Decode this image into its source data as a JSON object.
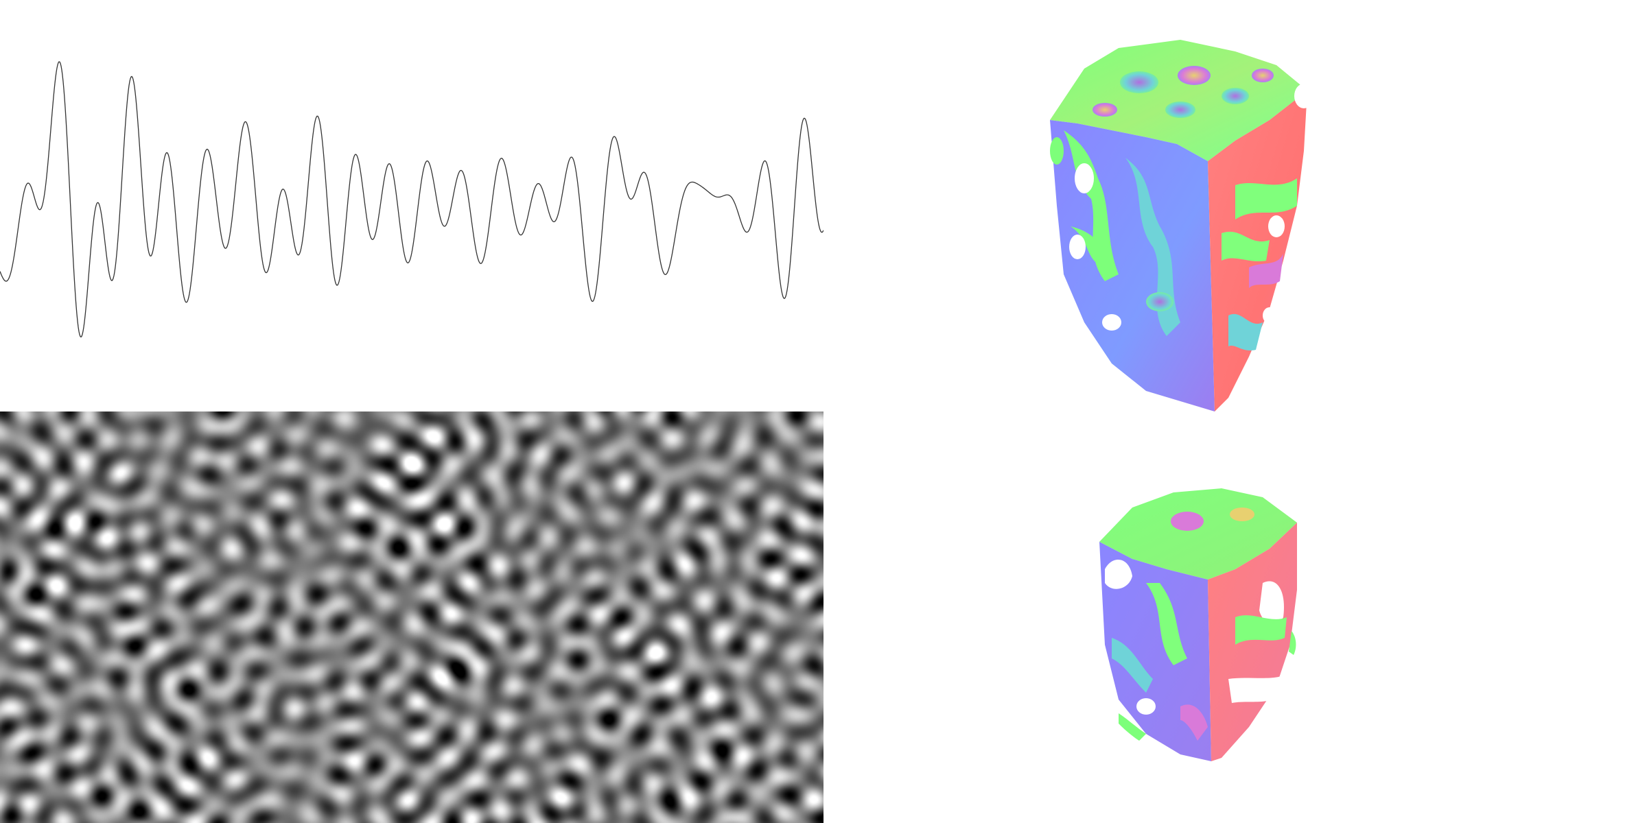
{
  "panels": [
    {
      "id": "noise-1d-waveform",
      "kind": "line-signal"
    },
    {
      "id": "noise-2d-texture",
      "kind": "grayscale-noise"
    },
    {
      "id": "noise-3d-volume-large",
      "kind": "normal-shaded-isosurface"
    },
    {
      "id": "noise-3d-volume-small",
      "kind": "normal-shaded-isosurface"
    }
  ],
  "colors": {
    "background": "#ffffff",
    "waveform_stroke": "#333333",
    "normal_x": "#ff7a7a",
    "normal_y": "#7dff7a",
    "normal_z": "#8a86ff",
    "normal_mix_magenta": "#d97ad9",
    "normal_mix_yellow": "#e8d070",
    "normal_mix_cyan": "#6fd3d8"
  }
}
